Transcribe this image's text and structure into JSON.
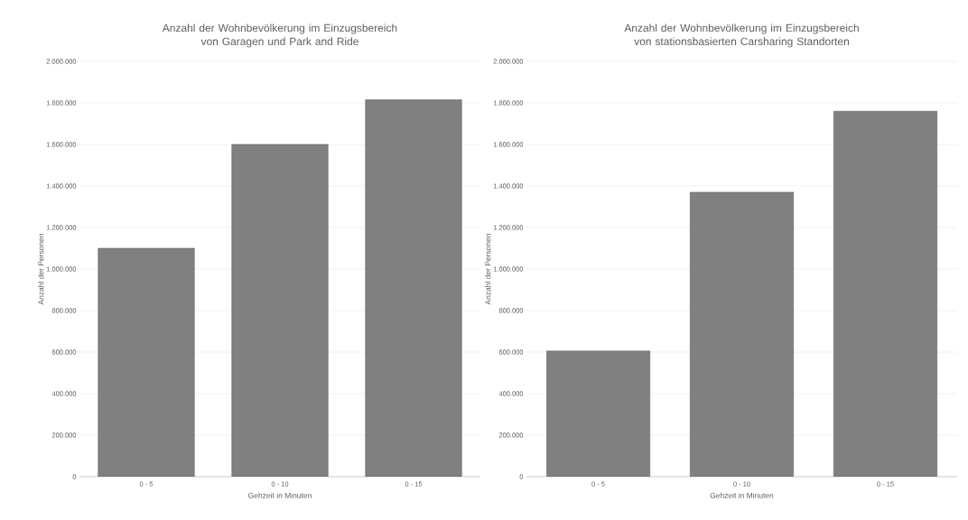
{
  "chart_data": [
    {
      "type": "bar",
      "title": "Anzahl der Wohnbevölkerung im Einzugsbereich von Garagen und Park and Ride",
      "xlabel": "Gehzeit in Minuten",
      "ylabel": "Anzahl der Personen",
      "categories": [
        "0 - 5",
        "0 - 10",
        "0 - 15"
      ],
      "values": [
        1100000,
        1600000,
        1815000
      ],
      "color": "#808080",
      "ylim": [
        0,
        2000000
      ],
      "yticks": [
        0,
        {
          "value": 200000,
          "label": "200.000"
        },
        {
          "value": 400000,
          "label": "400.000"
        },
        {
          "value": 600000,
          "label": "600.000"
        },
        {
          "value": 800000,
          "label": "800.000"
        },
        {
          "value": 1000000,
          "label": "1.000.000"
        },
        {
          "value": 1200000,
          "label": "1.200.000"
        },
        {
          "value": 1400000,
          "label": "1.400.000"
        },
        {
          "value": 1600000,
          "label": "1.600.000"
        },
        {
          "value": 1800000,
          "label": "1.800.000"
        },
        {
          "value": 2000000,
          "label": "2.000.000"
        }
      ],
      "grid": "y"
    },
    {
      "type": "bar",
      "title": "Anzahl der Wohnbevölkerung im Einzugsbereich von stationsbasierten Carsharing Standorten",
      "xlabel": "Gehzeit in Minuten",
      "ylabel": "Anzahl der Personen",
      "categories": [
        "0 - 5",
        "0 - 10",
        "0 - 15"
      ],
      "values": [
        605000,
        1370000,
        1760000
      ],
      "color": "#808080",
      "ylim": [
        0,
        2000000
      ],
      "yticks": [
        0,
        {
          "value": 200000,
          "label": "200.000"
        },
        {
          "value": 400000,
          "label": "400.000"
        },
        {
          "value": 600000,
          "label": "600.000"
        },
        {
          "value": 800000,
          "label": "800.000"
        },
        {
          "value": 1000000,
          "label": "1.000.000"
        },
        {
          "value": 1200000,
          "label": "1.200.000"
        },
        {
          "value": 1400000,
          "label": "1.400.000"
        },
        {
          "value": 1600000,
          "label": "1.600.000"
        },
        {
          "value": 1800000,
          "label": "1.800.000"
        },
        {
          "value": 2000000,
          "label": "2.000.000"
        }
      ],
      "grid": "y"
    }
  ]
}
